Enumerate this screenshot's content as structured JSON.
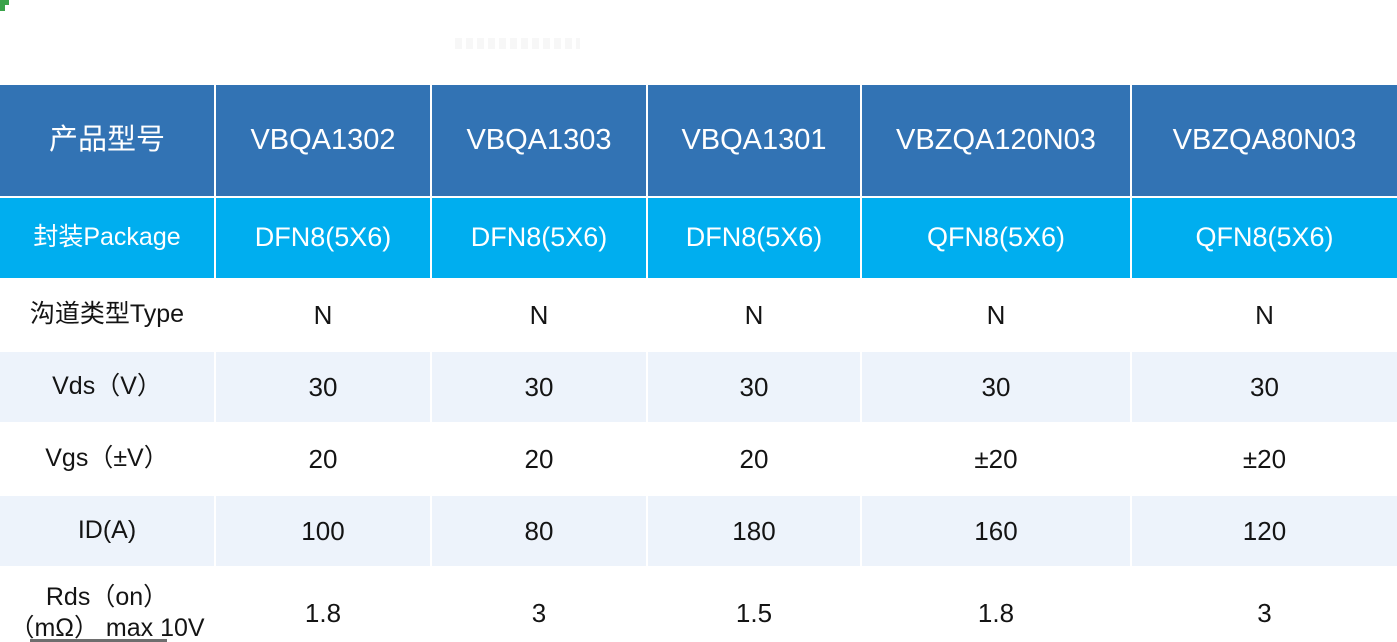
{
  "page": {
    "corner_mark_color": "#3aa34a",
    "colors": {
      "header_bg": "#3273b4",
      "package_row_bg": "#00aeef",
      "light_row_bg": "#edf3fb",
      "white_row_bg": "#ffffff",
      "header_text": "#ffffff",
      "body_text": "#141414"
    }
  },
  "table": {
    "header": [
      "产品型号",
      "VBQA1302",
      "VBQA1303",
      "VBQA1301",
      "VBZQA120N03",
      "VBZQA80N03"
    ],
    "rows": [
      {
        "label": "封装Package",
        "values": [
          "DFN8(5X6)",
          "DFN8(5X6)",
          "DFN8(5X6)",
          "QFN8(5X6)",
          "QFN8(5X6)"
        ]
      },
      {
        "label": "沟道类型Type",
        "values": [
          "N",
          "N",
          "N",
          "N",
          "N"
        ]
      },
      {
        "label": "Vds（V）",
        "values": [
          "30",
          "30",
          "30",
          "30",
          "30"
        ]
      },
      {
        "label": "Vgs（±V）",
        "values": [
          "20",
          "20",
          "20",
          "±20",
          "±20"
        ]
      },
      {
        "label": "ID(A)",
        "values": [
          "100",
          "80",
          "180",
          "160",
          "120"
        ]
      },
      {
        "label": "Rds（on） （mΩ） max 10V",
        "values": [
          "1.8",
          "3",
          "1.5",
          "1.8",
          "3"
        ]
      }
    ]
  }
}
